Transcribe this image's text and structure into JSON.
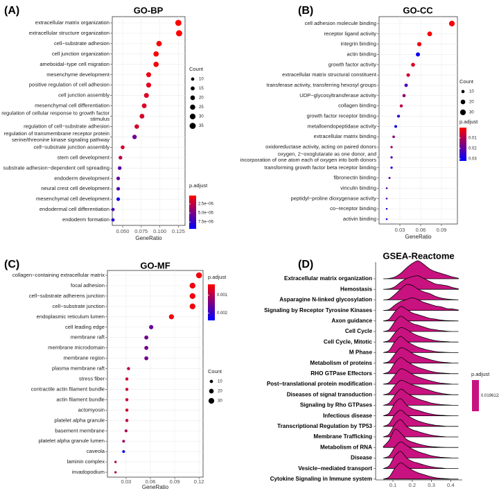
{
  "chart_data": [
    {
      "type": "dotplot",
      "panel_label": "(A)",
      "title": "GO-BP",
      "xlabel": "GeneRatio",
      "categories": [
        "extracellular matrix organization",
        "extracellular structure organization",
        "cell−substrate adhesion",
        "cell junction organization",
        "ameboidal−type cell migration",
        "mesenchyme development",
        "positive regulation of cell adhesion",
        "cell junction assembly",
        "mesenchymal cell differentiation",
        "regulation of cellular response to growth factor\nstimulus",
        "regulation of cell−substrate adhesion",
        "regulation of transmembrane receptor protein\nserine/threonine kinase signaling pathway",
        "cell−substrate junction assembly",
        "stem cell development",
        "substrate adhesion−dependent cell spreading",
        "endoderm development",
        "neural crest cell development",
        "mesenchymal cell development",
        "endodermal cell differentiation",
        "endoderm formation"
      ],
      "values": [
        0.125,
        0.126,
        0.099,
        0.095,
        0.095,
        0.085,
        0.085,
        0.082,
        0.079,
        0.076,
        0.069,
        0.066,
        0.05,
        0.047,
        0.046,
        0.044,
        0.044,
        0.044,
        0.037,
        0.037
      ],
      "sizes": [
        35,
        35,
        27,
        26,
        26,
        23,
        23,
        22,
        21,
        21,
        19,
        18,
        14,
        13,
        13,
        12,
        12,
        12,
        10,
        10
      ],
      "p_adjust": [
        3e-07,
        2e-07,
        4e-07,
        5e-07,
        6e-07,
        8e-07,
        1.2e-06,
        1.5e-06,
        1.4e-06,
        1.8e-06,
        1.8e-06,
        5.6e-06,
        1.8e-06,
        2.5e-06,
        6e-06,
        5.8e-06,
        6.5e-06,
        9e-06,
        7e-06,
        7.8e-06
      ],
      "xlim": [
        0.036,
        0.134
      ],
      "xticks": [
        {
          "value": 0.05,
          "label": "0.050"
        },
        {
          "value": 0.075,
          "label": "0.075"
        },
        {
          "value": 0.1,
          "label": "0.100"
        },
        0.125
      ],
      "grid": true,
      "size_legend": {
        "title": "Count",
        "values": [
          10,
          15,
          20,
          25,
          30,
          35
        ]
      },
      "color_legend": {
        "title": "p.adjust",
        "lim": [
          2e-07,
          9.4e-06
        ],
        "ticks": [
          {
            "value": 2.5e-06,
            "label": "2.5e−06"
          },
          {
            "value": 5e-06,
            "label": "5.0e−06"
          },
          {
            "value": 7.5e-06,
            "label": "7.5e−06"
          }
        ],
        "colors": [
          "#ff0000",
          "#0000ff"
        ]
      }
    },
    {
      "type": "dotplot",
      "panel_label": "(B)",
      "title": "GO-CC",
      "xlabel": "GeneRatio",
      "categories": [
        "cell adhesion molecule binding",
        "receptor ligand activity",
        "integrin binding",
        "actin binding",
        "growth factor activity",
        "extracellular matrix structural constituent",
        "transferase activity, transferring hexosyl groups",
        "UDP−glycosyltransferase activity",
        "collagen binding",
        "growth factor receptor binding",
        "metalloendopeptidase activity",
        "extracellular matrix binding",
        "oxidoreductase activity, acting on paired donors",
        "oxygen, 2−oxoglutarate as one donor, and\nincorporation of one atom each of oxygen into both donors",
        "transforming growth factor beta receptor binding",
        "fibronectin binding",
        "vinculin binding",
        "peptidyl−proline dioxygenase activity",
        "co−receptor binding",
        "activin binding"
      ],
      "values": [
        0.105,
        0.073,
        0.058,
        0.056,
        0.049,
        0.042,
        0.039,
        0.036,
        0.032,
        0.028,
        0.024,
        0.021,
        0.018,
        0.018,
        0.018,
        0.015,
        0.011,
        0.011,
        0.011,
        0.011
      ],
      "sizes": [
        30,
        21,
        17,
        16,
        14,
        12,
        11,
        10,
        9,
        8,
        7,
        6,
        5,
        5,
        5,
        4,
        3,
        3,
        3,
        3
      ],
      "p_adjust": [
        0.001,
        0.001,
        0.002,
        0.03,
        0.004,
        0.006,
        0.022,
        0.014,
        0.008,
        0.026,
        0.029,
        0.015,
        0.011,
        0.022,
        0.028,
        0.02,
        0.02,
        0.022,
        0.026,
        0.028
      ],
      "xlim": [
        0,
        0.113
      ],
      "xticks": [
        0.03,
        0.06,
        0.09
      ],
      "grid": true,
      "size_legend": {
        "title": "Count",
        "values": [
          10,
          20,
          30
        ]
      },
      "color_legend": {
        "title": "p.adjust",
        "lim": [
          0.0001,
          0.032
        ],
        "ticks": [
          0.01,
          0.02,
          0.03
        ],
        "colors": [
          "#ff0000",
          "#0000ff"
        ]
      }
    },
    {
      "type": "dotplot",
      "panel_label": "(C)",
      "title": "GO-MF",
      "xlabel": "GeneRatio",
      "categories": [
        "collagen−containing extracellular matrix",
        "focal adhesion",
        "cell−substrate adherens junction",
        "cell−substrate junction",
        "endoplasmic reticulum lumen",
        "cell leading edge",
        "membrane raft",
        "membrane microdomain",
        "membrane region",
        "plasma membrane raft",
        "stress fiber",
        "contractile actin filament bundle",
        "actin filament bundle",
        "actomyosin",
        "platelet alpha granule",
        "basement membrane",
        "platelet alpha granule lumen",
        "caveola",
        "laminin complex",
        "invadopodium"
      ],
      "values": [
        0.12,
        0.112,
        0.112,
        0.112,
        0.086,
        0.061,
        0.055,
        0.055,
        0.055,
        0.033,
        0.031,
        0.031,
        0.031,
        0.031,
        0.031,
        0.03,
        0.027,
        0.027,
        0.017,
        0.017
      ],
      "sizes": [
        33,
        31,
        31,
        31,
        24,
        17,
        15,
        15,
        15,
        9,
        9,
        9,
        9,
        9,
        9,
        8,
        7,
        7,
        5,
        5
      ],
      "p_adjust": [
        0.0005,
        0.0005,
        0.0005,
        0.0005,
        0.0005,
        0.0016,
        0.0015,
        0.0015,
        0.0015,
        0.0009,
        0.0008,
        0.0008,
        0.0008,
        0.0008,
        0.0009,
        0.001,
        0.0012,
        0.0023,
        0.001,
        0.001
      ],
      "xlim": [
        0.007,
        0.125
      ],
      "xticks": [
        0.03,
        0.06,
        0.09,
        0.12
      ],
      "grid": true,
      "size_legend": {
        "title": "Count",
        "values": [
          10,
          20,
          30
        ]
      },
      "color_legend": {
        "title": "p.adjust",
        "lim": [
          0.0004,
          0.0024
        ],
        "ticks": [
          0.001,
          0.002
        ],
        "colors": [
          "#ff0000",
          "#0000ff"
        ]
      }
    },
    {
      "type": "ridgeline",
      "panel_label": "(D)",
      "title": "GSEA-Reactome",
      "x": [
        0.05,
        0.08,
        0.11,
        0.14,
        0.17,
        0.2,
        0.23,
        0.26,
        0.29,
        0.32,
        0.35,
        0.38,
        0.41,
        0.44
      ],
      "color": "#c8127f",
      "series": [
        {
          "name": "Extracellular matrix organization",
          "values": [
            0,
            0.02,
            0.1,
            0.3,
            0.6,
            0.85,
            1.0,
            0.8,
            0.55,
            0.4,
            0.3,
            0.2,
            0.1,
            0.03
          ]
        },
        {
          "name": "Hemostasis",
          "values": [
            0,
            0.03,
            0.15,
            0.4,
            0.6,
            0.7,
            0.75,
            0.6,
            0.45,
            0.3,
            0.25,
            0.2,
            0.1,
            0.03
          ]
        },
        {
          "name": "Asparagine N-linked glycosylation",
          "values": [
            0,
            0.05,
            0.3,
            0.6,
            0.85,
            0.8,
            0.6,
            0.45,
            0.35,
            0.2,
            0.1,
            0.05,
            0.02,
            0
          ]
        },
        {
          "name": "Signaling by Receptor Tyrosine Kinases",
          "values": [
            0,
            0.05,
            0.3,
            0.5,
            0.6,
            0.7,
            0.6,
            0.45,
            0.35,
            0.25,
            0.2,
            0.1,
            0.08,
            0.02
          ]
        },
        {
          "name": "Axon guidance",
          "values": [
            0,
            0.1,
            0.5,
            0.8,
            0.65,
            0.45,
            0.35,
            0.25,
            0.15,
            0.1,
            0.05,
            0.02,
            0.01,
            0
          ]
        },
        {
          "name": "Cell Cycle",
          "values": [
            0,
            0.1,
            0.55,
            0.85,
            0.65,
            0.45,
            0.35,
            0.25,
            0.15,
            0.1,
            0.05,
            0.02,
            0,
            0
          ]
        },
        {
          "name": "Cell Cycle, Mitotic",
          "values": [
            0,
            0.1,
            0.5,
            0.8,
            0.7,
            0.5,
            0.35,
            0.25,
            0.15,
            0.08,
            0.04,
            0.02,
            0,
            0
          ]
        },
        {
          "name": "M Phase",
          "values": [
            0,
            0.12,
            0.6,
            0.9,
            0.65,
            0.45,
            0.3,
            0.2,
            0.12,
            0.06,
            0.03,
            0.01,
            0,
            0
          ]
        },
        {
          "name": "Metabolism of proteins",
          "values": [
            0,
            0.1,
            0.5,
            0.85,
            0.75,
            0.55,
            0.4,
            0.3,
            0.2,
            0.12,
            0.06,
            0.03,
            0,
            0
          ]
        },
        {
          "name": "RHO GTPase Effectors",
          "values": [
            0,
            0.12,
            0.6,
            0.9,
            0.7,
            0.5,
            0.35,
            0.25,
            0.15,
            0.08,
            0.04,
            0.02,
            0,
            0
          ]
        },
        {
          "name": "Post−translational protein modification",
          "values": [
            0,
            0.1,
            0.5,
            0.85,
            0.75,
            0.55,
            0.4,
            0.3,
            0.2,
            0.12,
            0.06,
            0.03,
            0,
            0
          ]
        },
        {
          "name": "Diseases of signal transduction",
          "values": [
            0,
            0.1,
            0.5,
            0.8,
            0.7,
            0.55,
            0.45,
            0.35,
            0.25,
            0.15,
            0.08,
            0.03,
            0,
            0
          ]
        },
        {
          "name": "Signaling by Rho GTPases",
          "values": [
            0,
            0.12,
            0.55,
            0.9,
            0.7,
            0.5,
            0.35,
            0.25,
            0.15,
            0.08,
            0.04,
            0.02,
            0,
            0
          ]
        },
        {
          "name": "Infectious disease",
          "values": [
            0,
            0.15,
            0.7,
            0.95,
            0.6,
            0.4,
            0.3,
            0.2,
            0.12,
            0.06,
            0.03,
            0.01,
            0,
            0
          ]
        },
        {
          "name": "Transcriptional Regulation by TP53",
          "values": [
            0,
            0.15,
            0.65,
            0.9,
            0.65,
            0.45,
            0.3,
            0.2,
            0.12,
            0.06,
            0.03,
            0,
            0,
            0
          ]
        },
        {
          "name": "Membrane Trafficking",
          "values": [
            0,
            0.15,
            0.7,
            0.95,
            0.6,
            0.4,
            0.3,
            0.2,
            0.12,
            0.06,
            0.03,
            0,
            0,
            0
          ]
        },
        {
          "name": "Metabolism of RNA",
          "values": [
            0.05,
            0.4,
            1.0,
            0.8,
            0.45,
            0.3,
            0.2,
            0.12,
            0.06,
            0.03,
            0.01,
            0,
            0,
            0
          ]
        },
        {
          "name": "Disease",
          "values": [
            0,
            0.12,
            0.6,
            0.9,
            0.7,
            0.5,
            0.35,
            0.25,
            0.15,
            0.08,
            0.04,
            0.02,
            0,
            0
          ]
        },
        {
          "name": "Vesicle−mediated transport",
          "values": [
            0,
            0.15,
            0.7,
            0.95,
            0.6,
            0.4,
            0.3,
            0.2,
            0.12,
            0.06,
            0.03,
            0,
            0,
            0
          ]
        },
        {
          "name": "Cytokine Signaling in Immune system",
          "values": [
            0,
            0.12,
            0.6,
            0.9,
            0.7,
            0.5,
            0.35,
            0.25,
            0.15,
            0.08,
            0.04,
            0.02,
            0,
            0
          ]
        }
      ],
      "xlim": [
        0.01,
        0.46
      ],
      "xticks": [
        0.1,
        0.2,
        0.3,
        0.4
      ],
      "color_legend": {
        "title": "p.adjust",
        "ticks": [
          0.01961228
        ]
      }
    }
  ]
}
